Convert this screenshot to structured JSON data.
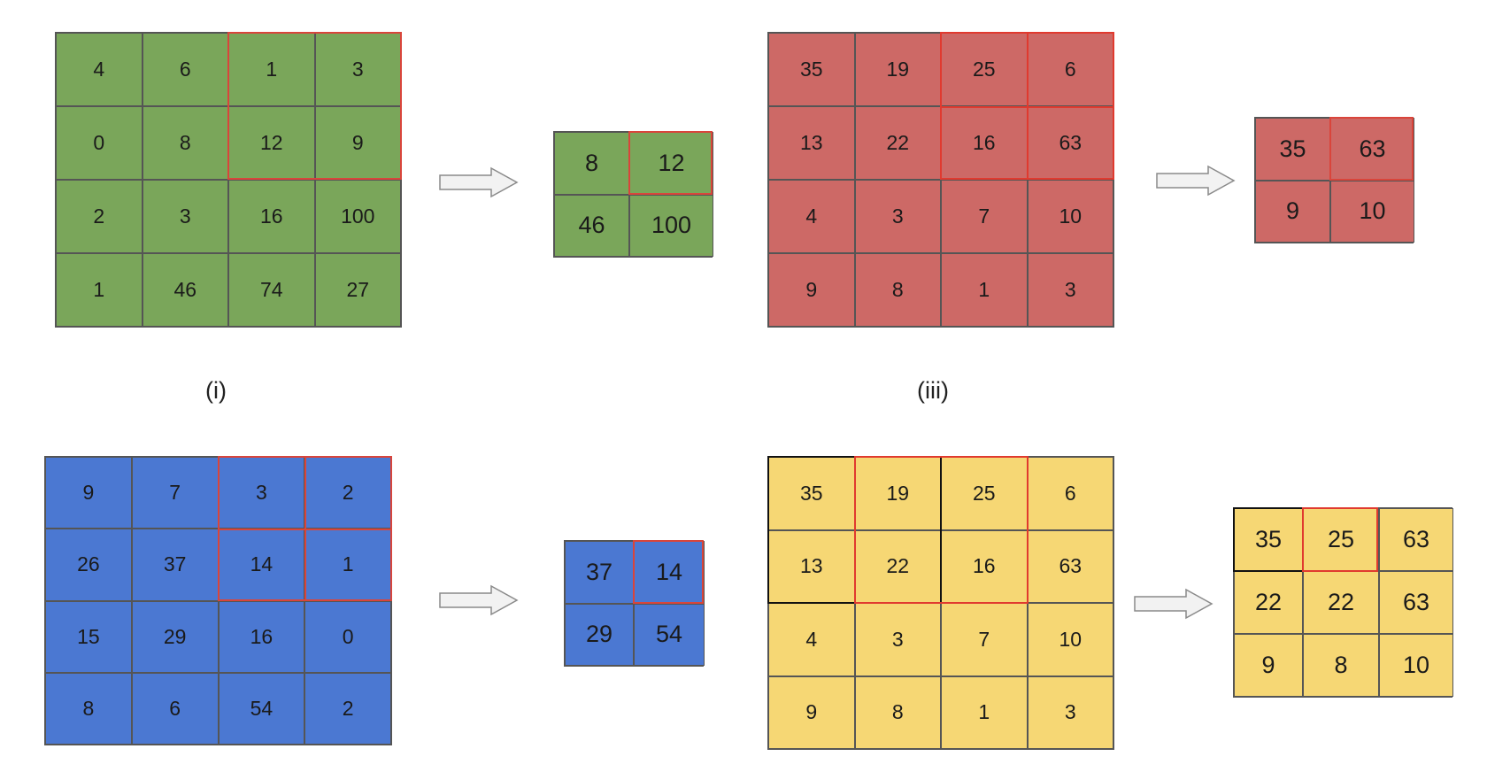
{
  "panels": {
    "green": {
      "input": [
        [
          "4",
          "6",
          "1",
          "3"
        ],
        [
          "0",
          "8",
          "12",
          "9"
        ],
        [
          "2",
          "3",
          "16",
          "100"
        ],
        [
          "1",
          "46",
          "74",
          "27"
        ]
      ],
      "output": [
        [
          "8",
          "12"
        ],
        [
          "46",
          "100"
        ]
      ]
    },
    "red": {
      "input": [
        [
          "35",
          "19",
          "25",
          "6"
        ],
        [
          "13",
          "22",
          "16",
          "63"
        ],
        [
          "4",
          "3",
          "7",
          "10"
        ],
        [
          "9",
          "8",
          "1",
          "3"
        ]
      ],
      "output": [
        [
          "35",
          "63"
        ],
        [
          "9",
          "10"
        ]
      ]
    },
    "blue": {
      "input": [
        [
          "9",
          "7",
          "3",
          "2"
        ],
        [
          "26",
          "37",
          "14",
          "1"
        ],
        [
          "15",
          "29",
          "16",
          "0"
        ],
        [
          "8",
          "6",
          "54",
          "2"
        ]
      ],
      "output": [
        [
          "37",
          "14"
        ],
        [
          "29",
          "54"
        ]
      ]
    },
    "yellow": {
      "input": [
        [
          "35",
          "19",
          "25",
          "6"
        ],
        [
          "13",
          "22",
          "16",
          "63"
        ],
        [
          "4",
          "3",
          "7",
          "10"
        ],
        [
          "9",
          "8",
          "1",
          "3"
        ]
      ],
      "output": [
        [
          "35",
          "25",
          "63"
        ],
        [
          "22",
          "22",
          "63"
        ],
        [
          "9",
          "8",
          "10"
        ]
      ]
    }
  },
  "captions": {
    "left": "(i)",
    "right": "(iii)"
  },
  "colors": {
    "green": "#7aa65a",
    "red": "#cd6966",
    "blue": "#4b78d2",
    "yellow": "#f6d774",
    "highlight": "#e03a2f"
  }
}
